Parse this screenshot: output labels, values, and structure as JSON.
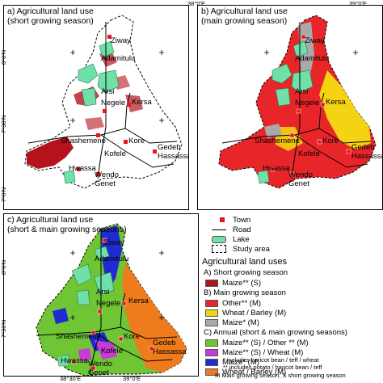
{
  "panels": [
    {
      "id": "a",
      "title": "a) Agricultural land use\n(short growing season)"
    },
    {
      "id": "b",
      "title": "b) Agricultural land use\n(main growing season)"
    },
    {
      "id": "c",
      "title": "c) Agricultural land use\n(short & main growing seasons)"
    }
  ],
  "ticks": {
    "top": [
      "38°0'E",
      "39°0'E"
    ],
    "left": [
      "8°0'N",
      "7°30'N",
      "7°0'N"
    ],
    "bottom": [
      "38°30'E",
      "39°0'E"
    ],
    "left_c": [
      "8°0'N",
      "7°30'N"
    ]
  },
  "towns": [
    "Ziway",
    "Adamitulu",
    "Arsi Negele",
    "Kersa",
    "Shashemene",
    "Kore",
    "Kofele",
    "Gedeb Hassassa",
    "Hwassa",
    "Wendo Genet"
  ],
  "legend": {
    "town": "Town",
    "road": "Road",
    "lake": "Lake",
    "study_area": "Study area",
    "heading": "Agricultural land uses",
    "section_a": "A) Short growing season",
    "a_items": [
      {
        "label": "Maize** (S)",
        "color": "#b5121b"
      }
    ],
    "section_b": "B) Main growing season",
    "b_items": [
      {
        "label": "Other** (M)",
        "color": "#e8262a"
      },
      {
        "label": "Wheat / Barley (M)",
        "color": "#f4d312"
      },
      {
        "label": "Maize* (M)",
        "color": "#a9a9a9"
      }
    ],
    "section_c": "C) Annual (short & main growing seasons)",
    "c_items": [
      {
        "label": "Maize** (S) / Other ** (M)",
        "color": "#6fc534"
      },
      {
        "label": "Maize** (S) / Wheat (M)",
        "color": "#c83bd6"
      },
      {
        "label": "Maize* (M)",
        "color": "#1f2bd1"
      },
      {
        "label": "Wheat / Barley (M)",
        "color": "#f07b1c"
      }
    ],
    "notes": [
      "* includes haricot bean / teff / wheat",
      "** includes potato / haricot bean / teff",
      "M Main growing season; S short growing season"
    ]
  },
  "colors": {
    "lake": "#6fe0a8",
    "town": "#e8141e",
    "road": "#000000",
    "outline": "#000000"
  }
}
